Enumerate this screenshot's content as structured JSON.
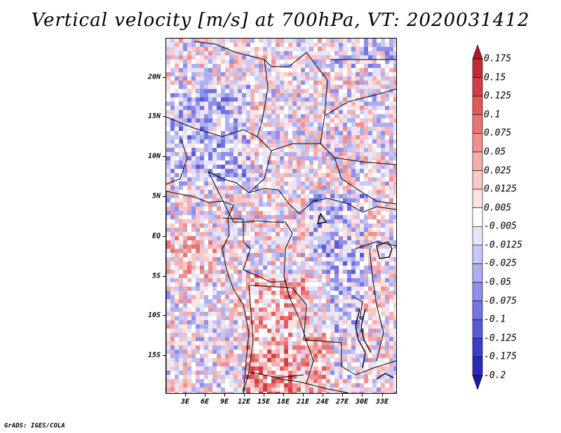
{
  "title": "Vertical velocity [m/s] at 700hPa, VT: 2020031412",
  "footer": "GrADS: IGES/COLA",
  "map": {
    "lat_labels": [
      "20N",
      "15N",
      "10N",
      "5N",
      "EQ",
      "5S",
      "10S",
      "15S"
    ],
    "lon_labels": [
      "3E",
      "6E",
      "9E",
      "12E",
      "15E",
      "18E",
      "21E",
      "24E",
      "27E",
      "30E",
      "33E"
    ]
  },
  "colorbar": {
    "labels": [
      "0.175",
      "0.15",
      "0.125",
      "0.1",
      "0.075",
      "0.05",
      "0.025",
      "0.0125",
      "0.005",
      "-0.005",
      "-0.0125",
      "-0.025",
      "-0.05",
      "-0.075",
      "-0.1",
      "-0.125",
      "-0.175",
      "-0.2"
    ],
    "colors": [
      "#b2182b",
      "#c42a35",
      "#d43d45",
      "#e05a5a",
      "#e87474",
      "#ef9090",
      "#f5aeae",
      "#fac8c8",
      "#fde4e4",
      "#ffffff",
      "#e4e4fb",
      "#c8c8f6",
      "#aeaef0",
      "#9090ea",
      "#7474e2",
      "#5a5ad8",
      "#3d3dc8",
      "#2a2ab4",
      "#1a1aa0"
    ]
  }
}
